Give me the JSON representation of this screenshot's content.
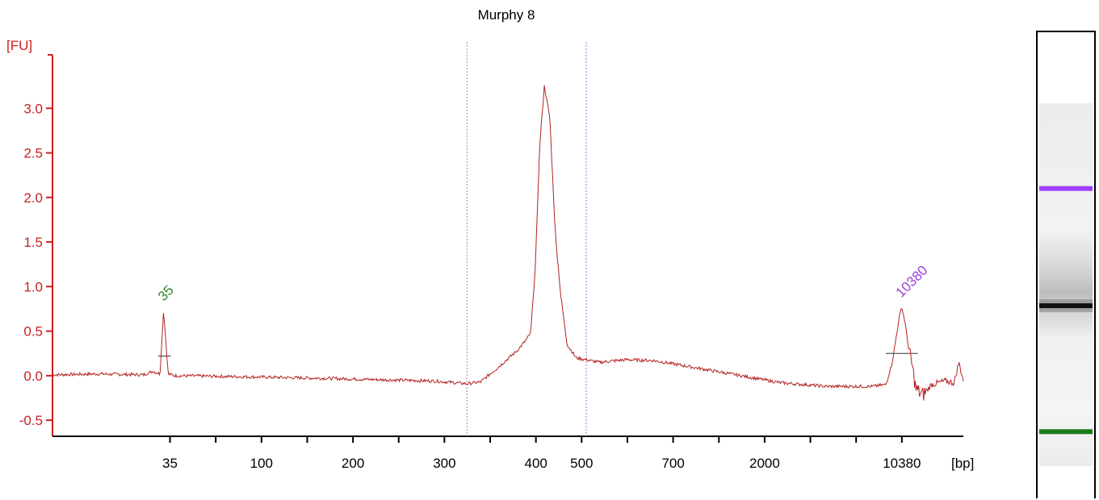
{
  "chart_data": {
    "type": "line",
    "title": "Murphy 8",
    "ylabel": "[FU]",
    "xlabel": "[bp]",
    "ylim": [
      -0.68,
      3.6
    ],
    "yticks": [
      -0.5,
      0.0,
      0.5,
      1.0,
      1.5,
      2.0,
      2.5,
      3.0
    ],
    "ytick_labels": [
      "-0.5",
      "0.0",
      "0.5",
      "1.0",
      "1.5",
      "2.0",
      "2.5",
      "3.0"
    ],
    "xticks": [
      {
        "label": "35",
        "labeled": true
      },
      {
        "label": "",
        "labeled": false
      },
      {
        "label": "100",
        "labeled": true
      },
      {
        "label": "",
        "labeled": false
      },
      {
        "label": "200",
        "labeled": true
      },
      {
        "label": "",
        "labeled": false
      },
      {
        "label": "300",
        "labeled": true
      },
      {
        "label": "",
        "labeled": false
      },
      {
        "label": "400",
        "labeled": true
      },
      {
        "label": "500",
        "labeled": true
      },
      {
        "label": "",
        "labeled": false
      },
      {
        "label": "700",
        "labeled": true
      },
      {
        "label": "",
        "labeled": false
      },
      {
        "label": "2000",
        "labeled": true
      },
      {
        "label": "",
        "labeled": false
      },
      {
        "label": "",
        "labeled": false
      },
      {
        "label": "10380",
        "labeled": true
      }
    ],
    "series": [
      {
        "color": "#b22222",
        "points": [
          [
            0.0,
            0.01
          ],
          [
            0.05,
            0.02
          ],
          [
            0.1,
            0.01
          ],
          [
            0.11,
            0.05
          ],
          [
            0.118,
            0.02
          ],
          [
            0.122,
            0.74
          ],
          [
            0.127,
            0.02
          ],
          [
            0.135,
            0.0
          ],
          [
            0.2,
            -0.01
          ],
          [
            0.3,
            -0.03
          ],
          [
            0.38,
            -0.05
          ],
          [
            0.42,
            -0.06
          ],
          [
            0.455,
            -0.09
          ],
          [
            0.47,
            -0.07
          ],
          [
            0.49,
            0.1
          ],
          [
            0.51,
            0.28
          ],
          [
            0.52,
            0.4
          ],
          [
            0.525,
            0.48
          ],
          [
            0.53,
            1.2
          ],
          [
            0.535,
            2.6
          ],
          [
            0.54,
            3.25
          ],
          [
            0.546,
            2.9
          ],
          [
            0.552,
            1.6
          ],
          [
            0.558,
            0.9
          ],
          [
            0.565,
            0.35
          ],
          [
            0.575,
            0.2
          ],
          [
            0.6,
            0.15
          ],
          [
            0.63,
            0.18
          ],
          [
            0.66,
            0.17
          ],
          [
            0.7,
            0.1
          ],
          [
            0.75,
            0.01
          ],
          [
            0.8,
            -0.08
          ],
          [
            0.85,
            -0.12
          ],
          [
            0.9,
            -0.12
          ],
          [
            0.915,
            -0.1
          ],
          [
            0.922,
            0.15
          ],
          [
            0.928,
            0.55
          ],
          [
            0.932,
            0.78
          ],
          [
            0.936,
            0.6
          ],
          [
            0.94,
            0.3
          ],
          [
            0.944,
            0.1
          ],
          [
            0.948,
            -0.15
          ],
          [
            0.955,
            -0.22
          ],
          [
            0.965,
            -0.1
          ],
          [
            0.98,
            -0.06
          ],
          [
            0.99,
            -0.08
          ],
          [
            0.995,
            0.15
          ],
          [
            1.0,
            -0.05
          ]
        ]
      }
    ],
    "region_markers": [
      {
        "x": 0.455,
        "color": "#9090a0"
      },
      {
        "x": 0.586,
        "color": "#9a70e0"
      }
    ],
    "peaks": [
      {
        "label": "35",
        "x": 0.122,
        "y": 0.74,
        "color": "#2e8b2e"
      },
      {
        "label": "10380",
        "x": 0.932,
        "y": 0.78,
        "color": "#9b3fd9"
      }
    ],
    "peak_baselines": [
      {
        "x0": 0.116,
        "x1": 0.13,
        "y": 0.22
      },
      {
        "x0": 0.915,
        "x1": 0.95,
        "y": 0.25
      }
    ]
  },
  "gel": {
    "bands": [
      {
        "pos": 0.235,
        "color": "#a040ff",
        "kind": "upper-marker"
      },
      {
        "pos": 0.558,
        "color": "#111111",
        "kind": "sample"
      },
      {
        "pos": 0.905,
        "color": "#1a7a1a",
        "kind": "lower-marker"
      }
    ]
  }
}
